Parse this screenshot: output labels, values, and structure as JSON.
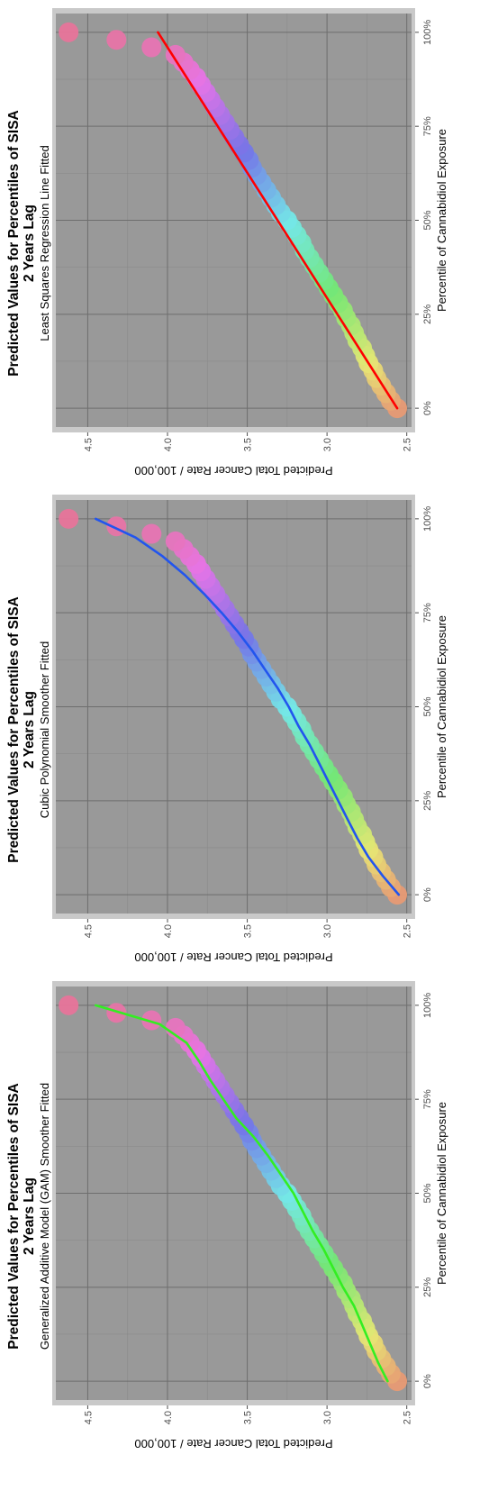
{
  "chart_data": [
    {
      "type": "scatter",
      "title": "Predicted Values for Percentiles of SISA",
      "title_line2": "2 Years Lag",
      "subtitle": "Least Squares Regression Line Fitted",
      "xlabel": "Percentile of Cannabidiol Exposure",
      "ylabel": "Predicted Total Cancer Rate / 100,000",
      "xticks": [
        "0%",
        "25%",
        "50%",
        "75%",
        "100%"
      ],
      "yticks": [
        "2.5",
        "3.0",
        "3.5",
        "4.0",
        "4.5"
      ],
      "xlim": [
        -0.05,
        1.05
      ],
      "ylim": [
        2.47,
        4.7
      ],
      "grid": true,
      "smoother": {
        "type": "linear",
        "color": "#ff0000",
        "x0": 0.0,
        "y0": 2.56,
        "x1": 1.0,
        "y1": 4.06
      },
      "points": {
        "x": [
          0.0,
          0.02,
          0.04,
          0.06,
          0.08,
          0.1,
          0.12,
          0.14,
          0.16,
          0.18,
          0.2,
          0.22,
          0.24,
          0.26,
          0.28,
          0.3,
          0.32,
          0.34,
          0.36,
          0.38,
          0.4,
          0.42,
          0.44,
          0.46,
          0.48,
          0.5,
          0.52,
          0.54,
          0.56,
          0.58,
          0.6,
          0.62,
          0.64,
          0.66,
          0.68,
          0.7,
          0.72,
          0.74,
          0.76,
          0.78,
          0.8,
          0.82,
          0.84,
          0.86,
          0.88,
          0.9,
          0.92,
          0.94,
          0.96,
          0.98,
          1.0
        ],
        "y": [
          2.56,
          2.6,
          2.63,
          2.66,
          2.69,
          2.71,
          2.74,
          2.76,
          2.78,
          2.81,
          2.83,
          2.85,
          2.88,
          2.9,
          2.93,
          2.96,
          2.99,
          3.02,
          3.05,
          3.08,
          3.11,
          3.14,
          3.16,
          3.19,
          3.22,
          3.25,
          3.29,
          3.32,
          3.35,
          3.38,
          3.41,
          3.44,
          3.47,
          3.49,
          3.52,
          3.55,
          3.58,
          3.61,
          3.64,
          3.67,
          3.7,
          3.73,
          3.76,
          3.79,
          3.82,
          3.86,
          3.9,
          3.95,
          4.1,
          4.32,
          4.62
        ]
      }
    },
    {
      "type": "scatter",
      "title": "Predicted Values for Percentiles of SISA",
      "title_line2": "2 Years Lag",
      "subtitle": "Cubic Polynomial Smoother Fitted",
      "xlabel": "Percentile of Cannabidiol Exposure",
      "ylabel": "Predicted Total Cancer Rate / 100,000",
      "xticks": [
        "0%",
        "25%",
        "50%",
        "75%",
        "100%"
      ],
      "yticks": [
        "2.5",
        "3.0",
        "3.5",
        "4.0",
        "4.5"
      ],
      "xlim": [
        -0.05,
        1.05
      ],
      "ylim": [
        2.47,
        4.7
      ],
      "grid": true,
      "smoother": {
        "type": "cubic",
        "color": "#2255ee",
        "x": [
          0.0,
          0.05,
          0.1,
          0.15,
          0.2,
          0.25,
          0.3,
          0.35,
          0.4,
          0.45,
          0.5,
          0.55,
          0.6,
          0.65,
          0.7,
          0.75,
          0.8,
          0.85,
          0.9,
          0.95,
          1.0
        ],
        "y": [
          2.55,
          2.65,
          2.74,
          2.81,
          2.87,
          2.93,
          2.99,
          3.05,
          3.11,
          3.18,
          3.24,
          3.31,
          3.39,
          3.47,
          3.56,
          3.66,
          3.77,
          3.89,
          4.03,
          4.2,
          4.45
        ]
      },
      "points": {
        "x": [
          0.0,
          0.02,
          0.04,
          0.06,
          0.08,
          0.1,
          0.12,
          0.14,
          0.16,
          0.18,
          0.2,
          0.22,
          0.24,
          0.26,
          0.28,
          0.3,
          0.32,
          0.34,
          0.36,
          0.38,
          0.4,
          0.42,
          0.44,
          0.46,
          0.48,
          0.5,
          0.52,
          0.54,
          0.56,
          0.58,
          0.6,
          0.62,
          0.64,
          0.66,
          0.68,
          0.7,
          0.72,
          0.74,
          0.76,
          0.78,
          0.8,
          0.82,
          0.84,
          0.86,
          0.88,
          0.9,
          0.92,
          0.94,
          0.96,
          0.98,
          1.0
        ],
        "y": [
          2.56,
          2.6,
          2.63,
          2.66,
          2.69,
          2.71,
          2.74,
          2.76,
          2.78,
          2.81,
          2.83,
          2.85,
          2.88,
          2.9,
          2.93,
          2.96,
          2.99,
          3.02,
          3.05,
          3.08,
          3.11,
          3.14,
          3.16,
          3.19,
          3.22,
          3.25,
          3.29,
          3.32,
          3.35,
          3.38,
          3.41,
          3.44,
          3.47,
          3.49,
          3.52,
          3.55,
          3.58,
          3.61,
          3.64,
          3.67,
          3.7,
          3.73,
          3.76,
          3.79,
          3.82,
          3.86,
          3.9,
          3.95,
          4.1,
          4.32,
          4.62
        ]
      }
    },
    {
      "type": "scatter",
      "title": "Predicted Values for Percentiles of SISA",
      "title_line2": "2 Years Lag",
      "subtitle": "Generalized Additive Model (GAM) Smoother Fitted",
      "xlabel": "Percentile of Cannabidiol Exposure",
      "ylabel": "Predicted Total Cancer Rate / 100,000",
      "xticks": [
        "0%",
        "25%",
        "50%",
        "75%",
        "100%"
      ],
      "yticks": [
        "2.5",
        "3.0",
        "3.5",
        "4.0",
        "4.5"
      ],
      "xlim": [
        -0.05,
        1.05
      ],
      "ylim": [
        2.47,
        4.7
      ],
      "grid": true,
      "smoother": {
        "type": "gam",
        "color": "#33ee22",
        "x": [
          0.0,
          0.05,
          0.1,
          0.15,
          0.2,
          0.25,
          0.3,
          0.35,
          0.4,
          0.45,
          0.5,
          0.55,
          0.6,
          0.65,
          0.7,
          0.75,
          0.8,
          0.85,
          0.9,
          0.95,
          1.0
        ],
        "y": [
          2.62,
          2.68,
          2.73,
          2.78,
          2.83,
          2.9,
          2.96,
          3.02,
          3.09,
          3.15,
          3.21,
          3.29,
          3.37,
          3.46,
          3.57,
          3.65,
          3.73,
          3.8,
          3.88,
          4.05,
          4.45
        ]
      },
      "points": {
        "x": [
          0.0,
          0.02,
          0.04,
          0.06,
          0.08,
          0.1,
          0.12,
          0.14,
          0.16,
          0.18,
          0.2,
          0.22,
          0.24,
          0.26,
          0.28,
          0.3,
          0.32,
          0.34,
          0.36,
          0.38,
          0.4,
          0.42,
          0.44,
          0.46,
          0.48,
          0.5,
          0.52,
          0.54,
          0.56,
          0.58,
          0.6,
          0.62,
          0.64,
          0.66,
          0.68,
          0.7,
          0.72,
          0.74,
          0.76,
          0.78,
          0.8,
          0.82,
          0.84,
          0.86,
          0.88,
          0.9,
          0.92,
          0.94,
          0.96,
          0.98,
          1.0
        ],
        "y": [
          2.56,
          2.6,
          2.63,
          2.66,
          2.69,
          2.71,
          2.74,
          2.76,
          2.78,
          2.81,
          2.83,
          2.85,
          2.88,
          2.9,
          2.93,
          2.96,
          2.99,
          3.02,
          3.05,
          3.08,
          3.11,
          3.14,
          3.16,
          3.19,
          3.22,
          3.25,
          3.29,
          3.32,
          3.35,
          3.38,
          3.41,
          3.44,
          3.47,
          3.49,
          3.52,
          3.55,
          3.58,
          3.61,
          3.64,
          3.67,
          3.7,
          3.73,
          3.76,
          3.79,
          3.82,
          3.86,
          3.9,
          3.95,
          4.1,
          4.32,
          4.62
        ]
      }
    }
  ]
}
